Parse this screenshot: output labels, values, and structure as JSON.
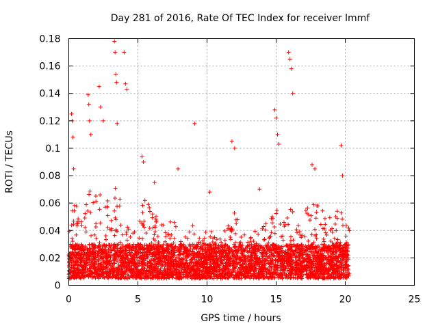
{
  "chart_data": {
    "type": "scatter",
    "title": "Day 281 of 2016, Rate Of TEC Index for receiver lmmf",
    "xlabel": "GPS time / hours",
    "ylabel": "ROTI / TECUs",
    "xlim": [
      0,
      25
    ],
    "ylim": [
      0,
      0.18
    ],
    "xticks": [
      "0",
      "5",
      "10",
      "15",
      "20",
      "25"
    ],
    "yticks": [
      "0",
      "0.02",
      "0.04",
      "0.06",
      "0.08",
      "0.1",
      "0.12",
      "0.14",
      "0.16",
      "0.18"
    ],
    "grid": true,
    "marker": "+",
    "color": "#ff0000",
    "data_range_hours": [
      0,
      20.3
    ],
    "baseline_range": [
      0.005,
      0.03
    ],
    "series": [
      {
        "name": "ROTI",
        "x": [
          0.2,
          0.25,
          0.3,
          0.35,
          1.4,
          1.45,
          1.5,
          1.6,
          2.2,
          2.3,
          2.5,
          3.3,
          3.35,
          3.4,
          3.45,
          3.5,
          4.0,
          4.1,
          4.2,
          5.3,
          5.4,
          6.2,
          7.9,
          9.1,
          10.2,
          11.8,
          12.0,
          13.8,
          14.9,
          15.0,
          15.1,
          15.2,
          15.9,
          16.0,
          16.1,
          16.2,
          17.6,
          17.8,
          19.7,
          19.8
        ],
        "y": [
          0.125,
          0.12,
          0.108,
          0.085,
          0.139,
          0.132,
          0.12,
          0.11,
          0.145,
          0.13,
          0.12,
          0.178,
          0.17,
          0.154,
          0.148,
          0.118,
          0.17,
          0.147,
          0.143,
          0.094,
          0.09,
          0.075,
          0.085,
          0.118,
          0.068,
          0.105,
          0.1,
          0.07,
          0.128,
          0.122,
          0.11,
          0.103,
          0.17,
          0.165,
          0.158,
          0.14,
          0.088,
          0.085,
          0.102,
          0.08
        ]
      }
    ]
  }
}
